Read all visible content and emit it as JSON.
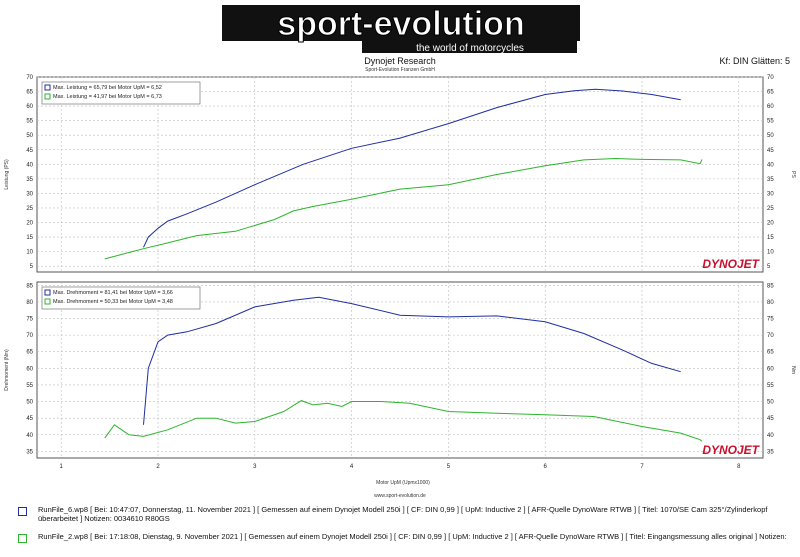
{
  "header": {
    "logo_main": "sport-evolution",
    "logo_tagline": "the world of motorcycles",
    "title": "Dynojet Research",
    "subtitle": "Sport-Evolution Franzen GmbH",
    "kf": "Kf: DIN Glätten: 5"
  },
  "colors": {
    "run1": "#1f2f9e",
    "run2": "#2db52d",
    "grid": "#bdbdbd",
    "brand": "#c8102e"
  },
  "chart_data": [
    {
      "type": "line",
      "title": "",
      "xlabel": "",
      "ylabel": "Leistung (PS)",
      "y2label": "PS",
      "xlim": [
        0.75,
        8.25
      ],
      "ylim": [
        3,
        70
      ],
      "yticks": [
        5,
        10,
        15,
        20,
        25,
        30,
        35,
        40,
        45,
        50,
        55,
        60,
        65,
        70
      ],
      "brand_mark": "DYNOJET",
      "legend": [
        "Max. Leistung = 65,79 bei Motor UpM = 6,52",
        "Max. Leistung = 41,97 bei Motor UpM = 6,73"
      ],
      "series": [
        {
          "x": [
            1.85,
            1.9,
            2.0,
            2.1,
            2.3,
            2.6,
            3.0,
            3.5,
            4.0,
            4.5,
            5.0,
            5.5,
            6.0,
            6.3,
            6.52,
            6.8,
            7.1,
            7.4
          ],
          "y": [
            11.5,
            15,
            18,
            20.5,
            23,
            27,
            33,
            40,
            45.5,
            49,
            54,
            59.5,
            64,
            65.3,
            65.8,
            65.2,
            64,
            62.2
          ]
        },
        {
          "x": [
            1.45,
            1.7,
            1.85,
            2.1,
            2.4,
            2.8,
            3.2,
            3.4,
            3.6,
            4.0,
            4.5,
            5.0,
            5.5,
            6.0,
            6.4,
            6.73,
            7.0,
            7.4,
            7.6,
            7.62
          ],
          "y": [
            7.5,
            9.7,
            11,
            13,
            15.5,
            17,
            21,
            24,
            25.5,
            28,
            31.5,
            33,
            36.5,
            39.5,
            41.5,
            42,
            41.7,
            41.5,
            40.2,
            41.7
          ]
        }
      ]
    },
    {
      "type": "line",
      "title": "",
      "xlabel": "Motor UpM (Upmx1000)",
      "ylabel": "Drehmoment (Nm)",
      "y2label": "Nm",
      "xlim": [
        0.75,
        8.25
      ],
      "ylim": [
        33,
        86
      ],
      "yticks": [
        35,
        40,
        45,
        50,
        55,
        60,
        65,
        70,
        75,
        80,
        85
      ],
      "xticks": [
        "1",
        "2",
        "3",
        "4",
        "5",
        "6",
        "7",
        "8"
      ],
      "brand_mark": "DYNOJET",
      "legend": [
        "Max. Drehmoment = 81,41 bei Motor UpM = 3,66",
        "Max. Drehmoment = 50,33 bei Motor UpM = 3,48"
      ],
      "series": [
        {
          "x": [
            1.85,
            1.9,
            2.0,
            2.1,
            2.3,
            2.6,
            3.0,
            3.4,
            3.66,
            4.0,
            4.5,
            5.0,
            5.5,
            6.0,
            6.4,
            6.8,
            7.1,
            7.4
          ],
          "y": [
            43,
            60,
            68,
            70,
            71,
            73.5,
            78.5,
            80.5,
            81.4,
            79.5,
            76,
            75.5,
            75.8,
            74,
            70.5,
            65.5,
            61.5,
            59
          ]
        },
        {
          "x": [
            1.45,
            1.55,
            1.7,
            1.85,
            2.1,
            2.4,
            2.6,
            2.8,
            3.0,
            3.3,
            3.48,
            3.6,
            3.75,
            3.9,
            4.0,
            4.3,
            4.6,
            5.0,
            5.5,
            6.0,
            6.5,
            7.0,
            7.4,
            7.6,
            7.62
          ],
          "y": [
            39,
            43,
            40,
            39.5,
            41.5,
            45,
            45,
            43.5,
            44,
            47,
            50.3,
            49,
            49.5,
            48.5,
            50,
            50,
            49.5,
            47,
            46.5,
            46,
            45.5,
            42.5,
            40.5,
            38.5,
            38
          ]
        }
      ]
    }
  ],
  "footer": {
    "url": "www.sport-evolution.de",
    "run1": "RunFile_6.wp8 [ Bei: 10:47:07, Donnerstag, 11. November 2021 ] [ Gemessen auf einem Dynojet Modell 250i ] [ CF: DIN 0,99 ] [ UpM: Inductive 2 ] [ AFR-Quelle DynoWare RTWB ] [ Titel: 1070/SE Cam 325°/Zylinderkopf überarbeitet ] Notizen: 0034610 R80GS",
    "run2": "RunFile_2.wp8 [ Bei: 17:18:08, Dienstag, 9. November 2021 ] [ Gemessen auf einem Dynojet Modell 250i ] [ CF: DIN 0,99 ] [ UpM: Inductive 2 ] [ AFR-Quelle DynoWare RTWB ] [ Titel: Eingangsmessung alles original ] Notizen:"
  }
}
